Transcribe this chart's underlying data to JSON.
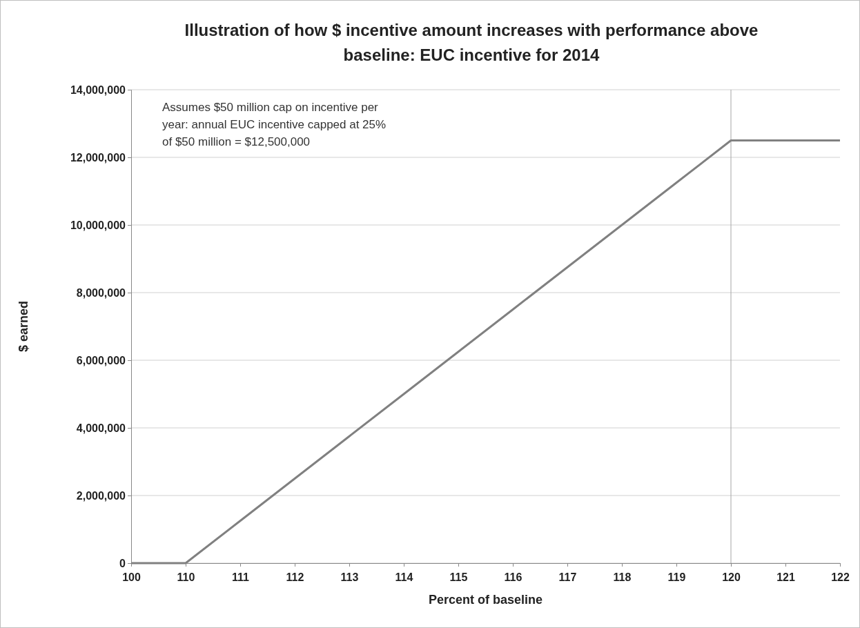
{
  "chart_data": {
    "type": "line",
    "title": "Illustration of how $ incentive amount increases with performance above baseline: EUC incentive for 2014",
    "xlabel": "Percent of baseline",
    "ylabel": "$ earned",
    "categories": [
      "100",
      "110",
      "111",
      "112",
      "113",
      "114",
      "115",
      "116",
      "117",
      "118",
      "119",
      "120",
      "121",
      "122"
    ],
    "series": [
      {
        "color": "#808080",
        "values": [
          0,
          0,
          1250000,
          2500000,
          3750000,
          5000000,
          6250000,
          7500000,
          8750000,
          10000000,
          11250000,
          12500000,
          12500000,
          12500000
        ]
      }
    ],
    "ylim": [
      0,
      14000000
    ],
    "yticks": [
      {
        "value": 0,
        "label": "0"
      },
      {
        "value": 2000000,
        "label": "2,000,000"
      },
      {
        "value": 4000000,
        "label": "4,000,000"
      },
      {
        "value": 6000000,
        "label": "6,000,000"
      },
      {
        "value": 8000000,
        "label": "8,000,000"
      },
      {
        "value": 10000000,
        "label": "10,000,000"
      },
      {
        "value": 12000000,
        "label": "12,000,000"
      },
      {
        "value": 14000000,
        "label": "14,000,000"
      }
    ],
    "grid": "y",
    "marker": "none",
    "line_style": "solid",
    "ref_lines": [
      {
        "axis": "x",
        "value": "120",
        "color": "#a6a6a6"
      }
    ],
    "annotations": [
      "Assumes $50 million cap on incentive per year: annual EUC incentive capped at 25% of $50 million = $12,500,000"
    ]
  }
}
